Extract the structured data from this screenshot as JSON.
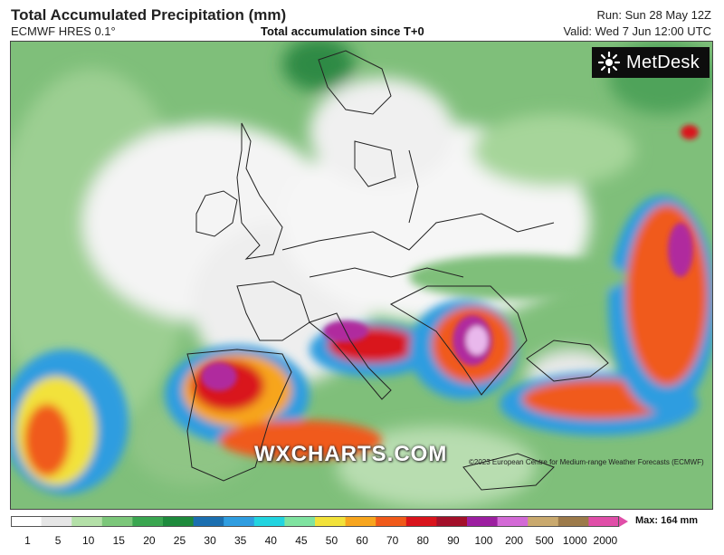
{
  "header": {
    "title": "Total Accumulated Precipitation (mm)",
    "model": "ECMWF HRES 0.1°",
    "subtitle": "Total accumulation since T+0",
    "run": "Run: Sun 28 May 12Z",
    "valid": "Valid: Wed 7 Jun 12:00 UTC"
  },
  "logo": {
    "text": "MetDesk",
    "icon": "metdesk-logo-icon"
  },
  "map": {
    "watermark": "WXCHARTS.COM",
    "copyright": "©2023 European Centre for Medium-range Weather Forecasts (ECMWF)"
  },
  "colorbar": {
    "ticks": [
      "1",
      "5",
      "10",
      "15",
      "20",
      "25",
      "30",
      "35",
      "40",
      "45",
      "50",
      "60",
      "70",
      "80",
      "90",
      "100",
      "200",
      "500",
      "1000",
      "2000"
    ],
    "colors": [
      "#ffffff",
      "#e6e6e6",
      "#b4e0a8",
      "#7cc77a",
      "#3aa650",
      "#1e8a3c",
      "#1b6fb0",
      "#2f9de0",
      "#22d4e0",
      "#7fe3a0",
      "#f2e23a",
      "#f7a51e",
      "#f05a1a",
      "#d9141c",
      "#a3102a",
      "#9c1fa0",
      "#d36ad6",
      "#c9a96e",
      "#9c7a4a",
      "#e04ea8"
    ],
    "max_label": "Max: 164 mm"
  }
}
